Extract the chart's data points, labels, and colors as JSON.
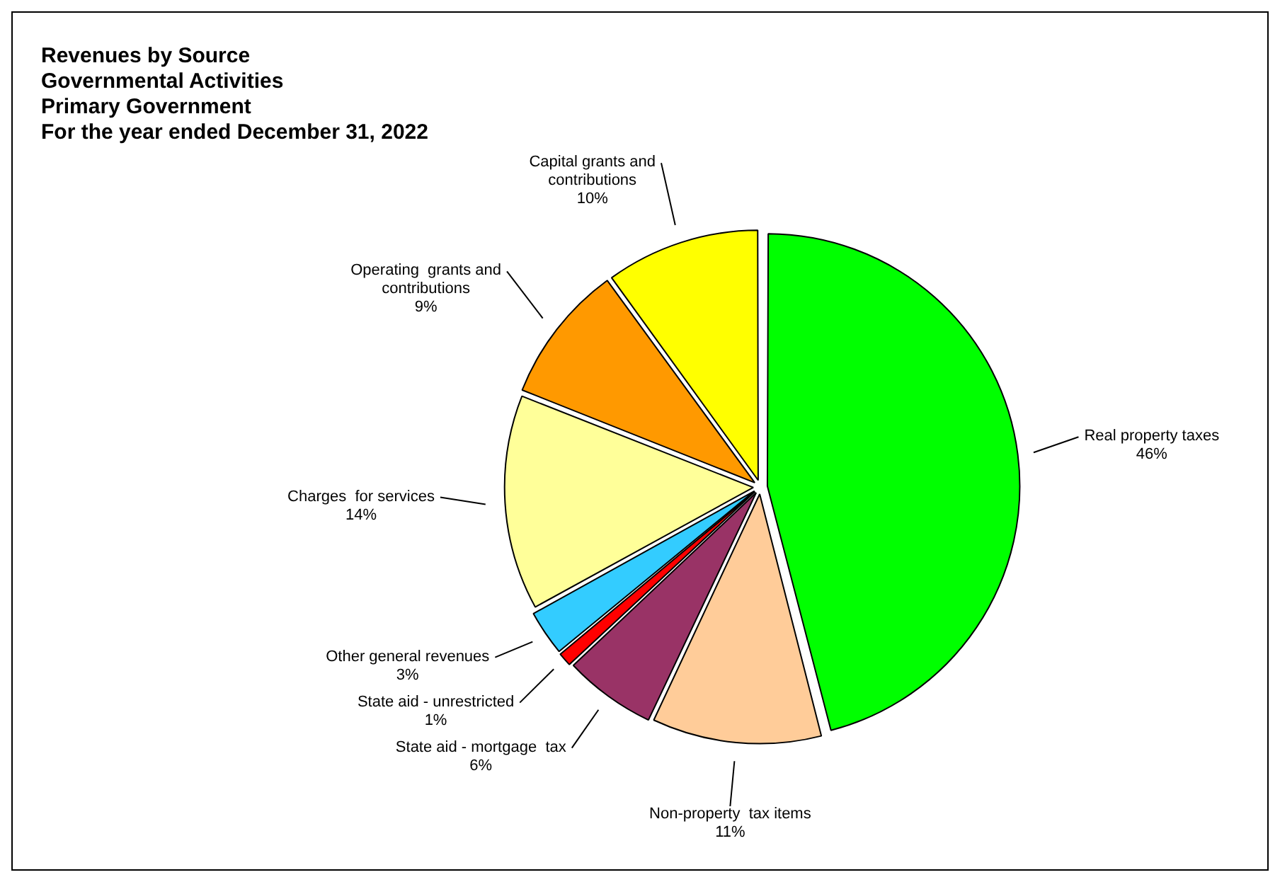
{
  "chart_data": {
    "type": "pie",
    "title": "Revenues by Source",
    "subtitle": "Governmental Activities\nPrimary Government\nFor the year ended December 31, 2022",
    "categories": [
      "Real property taxes",
      "Non-property  tax items",
      "State aid - mortgage  tax",
      "State aid - unrestricted",
      "Other general revenues",
      "Charges  for services",
      "Operating  grants and contributions",
      "Capital grants and contributions"
    ],
    "values": [
      46,
      11,
      6,
      1,
      3,
      14,
      9,
      10
    ],
    "colors": [
      "#00ff00",
      "#ffcc99",
      "#993366",
      "#ff0000",
      "#33ccff",
      "#ffff99",
      "#ff9900",
      "#ffff00"
    ],
    "value_labels": [
      "46%",
      "11%",
      "6%",
      "1%",
      "3%",
      "14%",
      "9%",
      "10%"
    ]
  }
}
